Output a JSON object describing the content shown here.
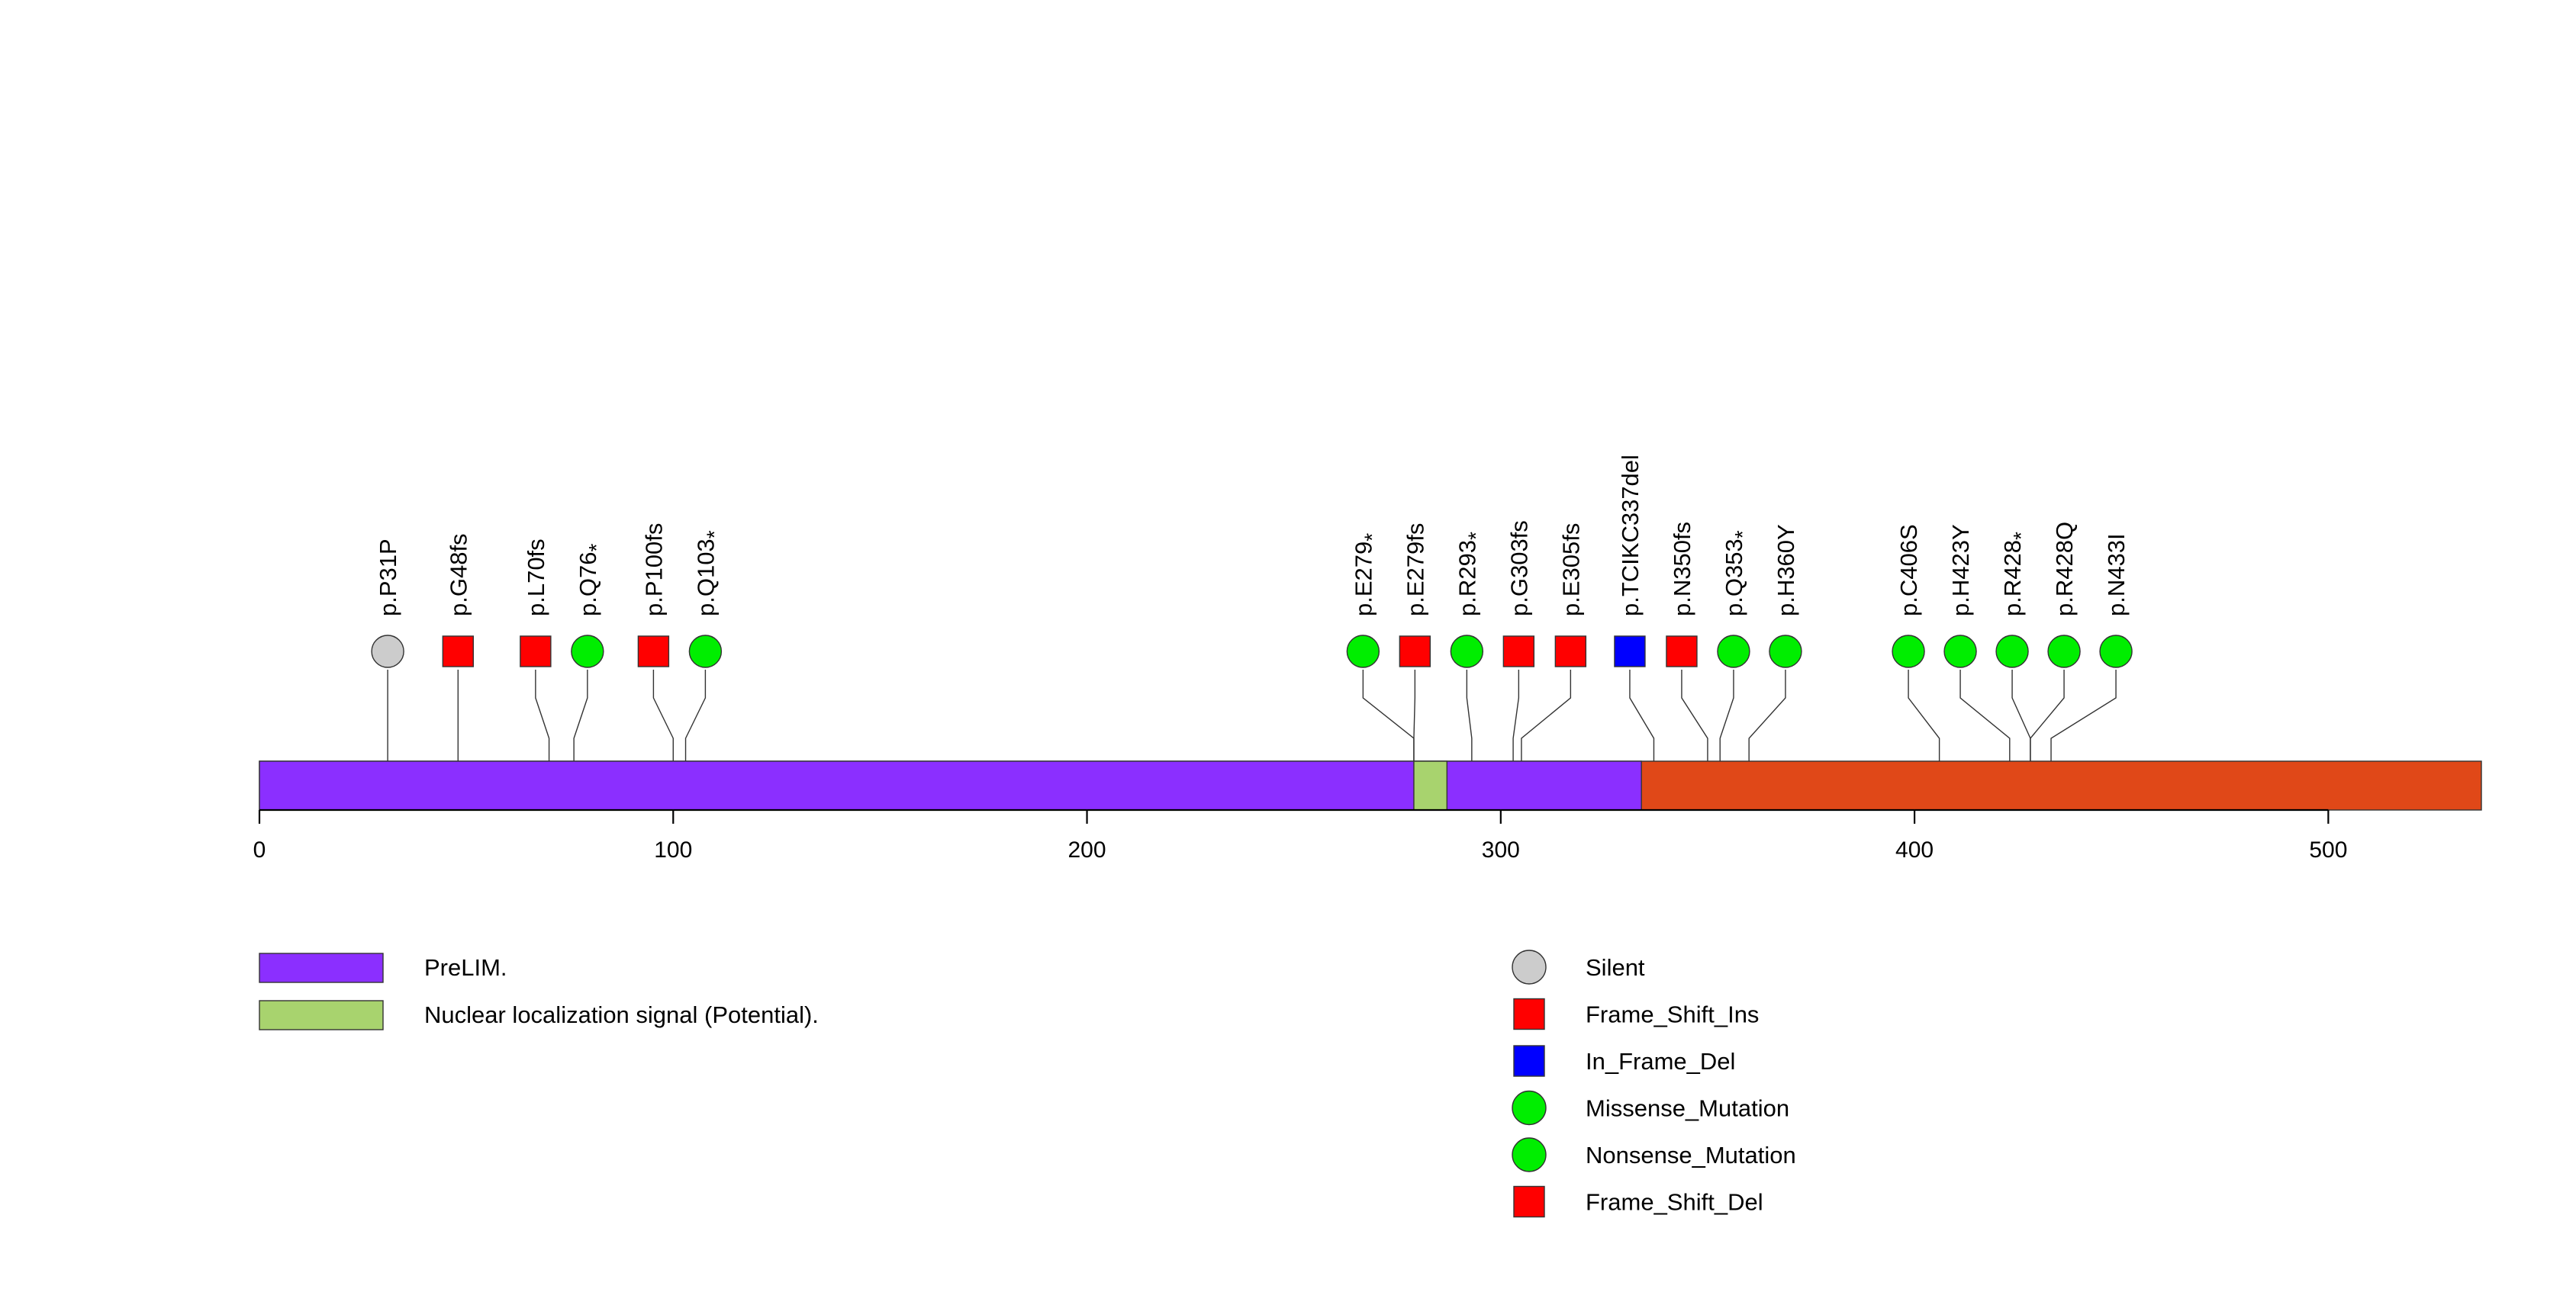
{
  "chart_data": {
    "type": "lollipop",
    "xlim": [
      0,
      537
    ],
    "x_ticks": [
      0,
      100,
      200,
      300,
      400,
      500
    ],
    "protein": {
      "start": 0,
      "end": 537,
      "color": "#e04818"
    },
    "domains": [
      {
        "name": "PreLIM.",
        "start": 0,
        "end": 334,
        "color": "#8b2fff"
      },
      {
        "name": "Nuclear localization signal (Potential).",
        "start": 279,
        "end": 287,
        "color": "#a8d36e"
      }
    ],
    "mutations": [
      {
        "label": "p.P31P",
        "pos": 31,
        "type": "Silent",
        "nonsense": false
      },
      {
        "label": "p.G48fs",
        "pos": 48,
        "type": "Frame_Shift_Ins",
        "nonsense": false
      },
      {
        "label": "p.L70fs",
        "pos": 70,
        "type": "Frame_Shift_Ins",
        "nonsense": false
      },
      {
        "label": "p.Q76",
        "pos": 76,
        "type": "Nonsense_Mutation",
        "nonsense": true
      },
      {
        "label": "p.P100fs",
        "pos": 100,
        "type": "Frame_Shift_Ins",
        "nonsense": false
      },
      {
        "label": "p.Q103",
        "pos": 103,
        "type": "Nonsense_Mutation",
        "nonsense": true
      },
      {
        "label": "p.E279",
        "pos": 279,
        "type": "Nonsense_Mutation",
        "nonsense": true
      },
      {
        "label": "p.E279fs",
        "pos": 279,
        "type": "Frame_Shift_Ins",
        "nonsense": false
      },
      {
        "label": "p.R293",
        "pos": 293,
        "type": "Nonsense_Mutation",
        "nonsense": true
      },
      {
        "label": "p.G303fs",
        "pos": 303,
        "type": "Frame_Shift_Ins",
        "nonsense": false
      },
      {
        "label": "p.E305fs",
        "pos": 305,
        "type": "Frame_Shift_Ins",
        "nonsense": false
      },
      {
        "label": "p.TCIKC337del",
        "pos": 337,
        "type": "In_Frame_Del",
        "nonsense": false
      },
      {
        "label": "p.N350fs",
        "pos": 350,
        "type": "Frame_Shift_Ins",
        "nonsense": false
      },
      {
        "label": "p.Q353",
        "pos": 353,
        "type": "Nonsense_Mutation",
        "nonsense": true
      },
      {
        "label": "p.H360Y",
        "pos": 360,
        "type": "Missense_Mutation",
        "nonsense": false
      },
      {
        "label": "p.C406S",
        "pos": 406,
        "type": "Missense_Mutation",
        "nonsense": false
      },
      {
        "label": "p.H423Y",
        "pos": 423,
        "type": "Missense_Mutation",
        "nonsense": false
      },
      {
        "label": "p.R428",
        "pos": 428,
        "type": "Nonsense_Mutation",
        "nonsense": true
      },
      {
        "label": "p.R428Q",
        "pos": 428,
        "type": "Missense_Mutation",
        "nonsense": false
      },
      {
        "label": "p.N433I",
        "pos": 433,
        "type": "Missense_Mutation",
        "nonsense": false
      }
    ],
    "nonsense_marker": "*",
    "legend_domains": [
      {
        "name": "PreLIM.",
        "color": "#8b2fff"
      },
      {
        "name": "Nuclear localization signal (Potential).",
        "color": "#a8d36e"
      }
    ],
    "legend_mutations": [
      {
        "name": "Silent",
        "shape": "circle",
        "color": "#cccccc"
      },
      {
        "name": "Frame_Shift_Ins",
        "shape": "square",
        "color": "#ff0000"
      },
      {
        "name": "In_Frame_Del",
        "shape": "square",
        "color": "#0000ff"
      },
      {
        "name": "Missense_Mutation",
        "shape": "circle",
        "color": "#00ee00"
      },
      {
        "name": "Nonsense_Mutation",
        "shape": "circle",
        "color": "#00ee00"
      },
      {
        "name": "Frame_Shift_Del",
        "shape": "square",
        "color": "#ff0000"
      }
    ],
    "type_styles": {
      "Silent": {
        "shape": "circle",
        "color": "#cccccc"
      },
      "Frame_Shift_Ins": {
        "shape": "square",
        "color": "#ff0000"
      },
      "Frame_Shift_Del": {
        "shape": "square",
        "color": "#ff0000"
      },
      "In_Frame_Del": {
        "shape": "square",
        "color": "#0000ff"
      },
      "Missense_Mutation": {
        "shape": "circle",
        "color": "#00ee00"
      },
      "Nonsense_Mutation": {
        "shape": "circle",
        "color": "#00ee00"
      }
    }
  }
}
